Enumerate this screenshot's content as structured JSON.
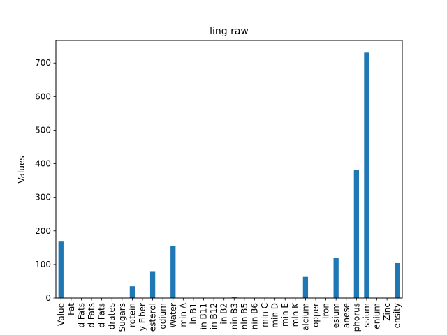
{
  "chart_data": {
    "type": "bar",
    "title": "ling raw",
    "xlabel": "",
    "ylabel": "Values",
    "ylim": [
      0,
      767
    ],
    "yticks": [
      0,
      100,
      200,
      300,
      400,
      500,
      600,
      700
    ],
    "bar_color": "#1f77b4",
    "grid": false,
    "tick_labels": [
      "Value",
      "Fat",
      "d Fats",
      "d Fats",
      "d Fats",
      "drates",
      "Sugars",
      "rotein",
      "y Fiber",
      "esterol",
      "odium",
      "Water",
      "min A",
      "in B1",
      "in B11",
      "in B12",
      "in B2",
      "nin B3",
      "nin B5",
      "nin B6",
      "min C",
      "min D",
      "min E",
      "min K",
      "alcium",
      "opper",
      "Iron",
      "esium",
      "anese",
      "phorus",
      "ssium",
      "enium",
      "Zinc",
      "ensity"
    ],
    "values": [
      168,
      0.6,
      0.1,
      0.2,
      0.2,
      0,
      0,
      35,
      0,
      78,
      0,
      154,
      0,
      0,
      0,
      0,
      0,
      3,
      0,
      0,
      0,
      0,
      0,
      0,
      63,
      0,
      0,
      120,
      0,
      382,
      731,
      0,
      1,
      104
    ]
  }
}
